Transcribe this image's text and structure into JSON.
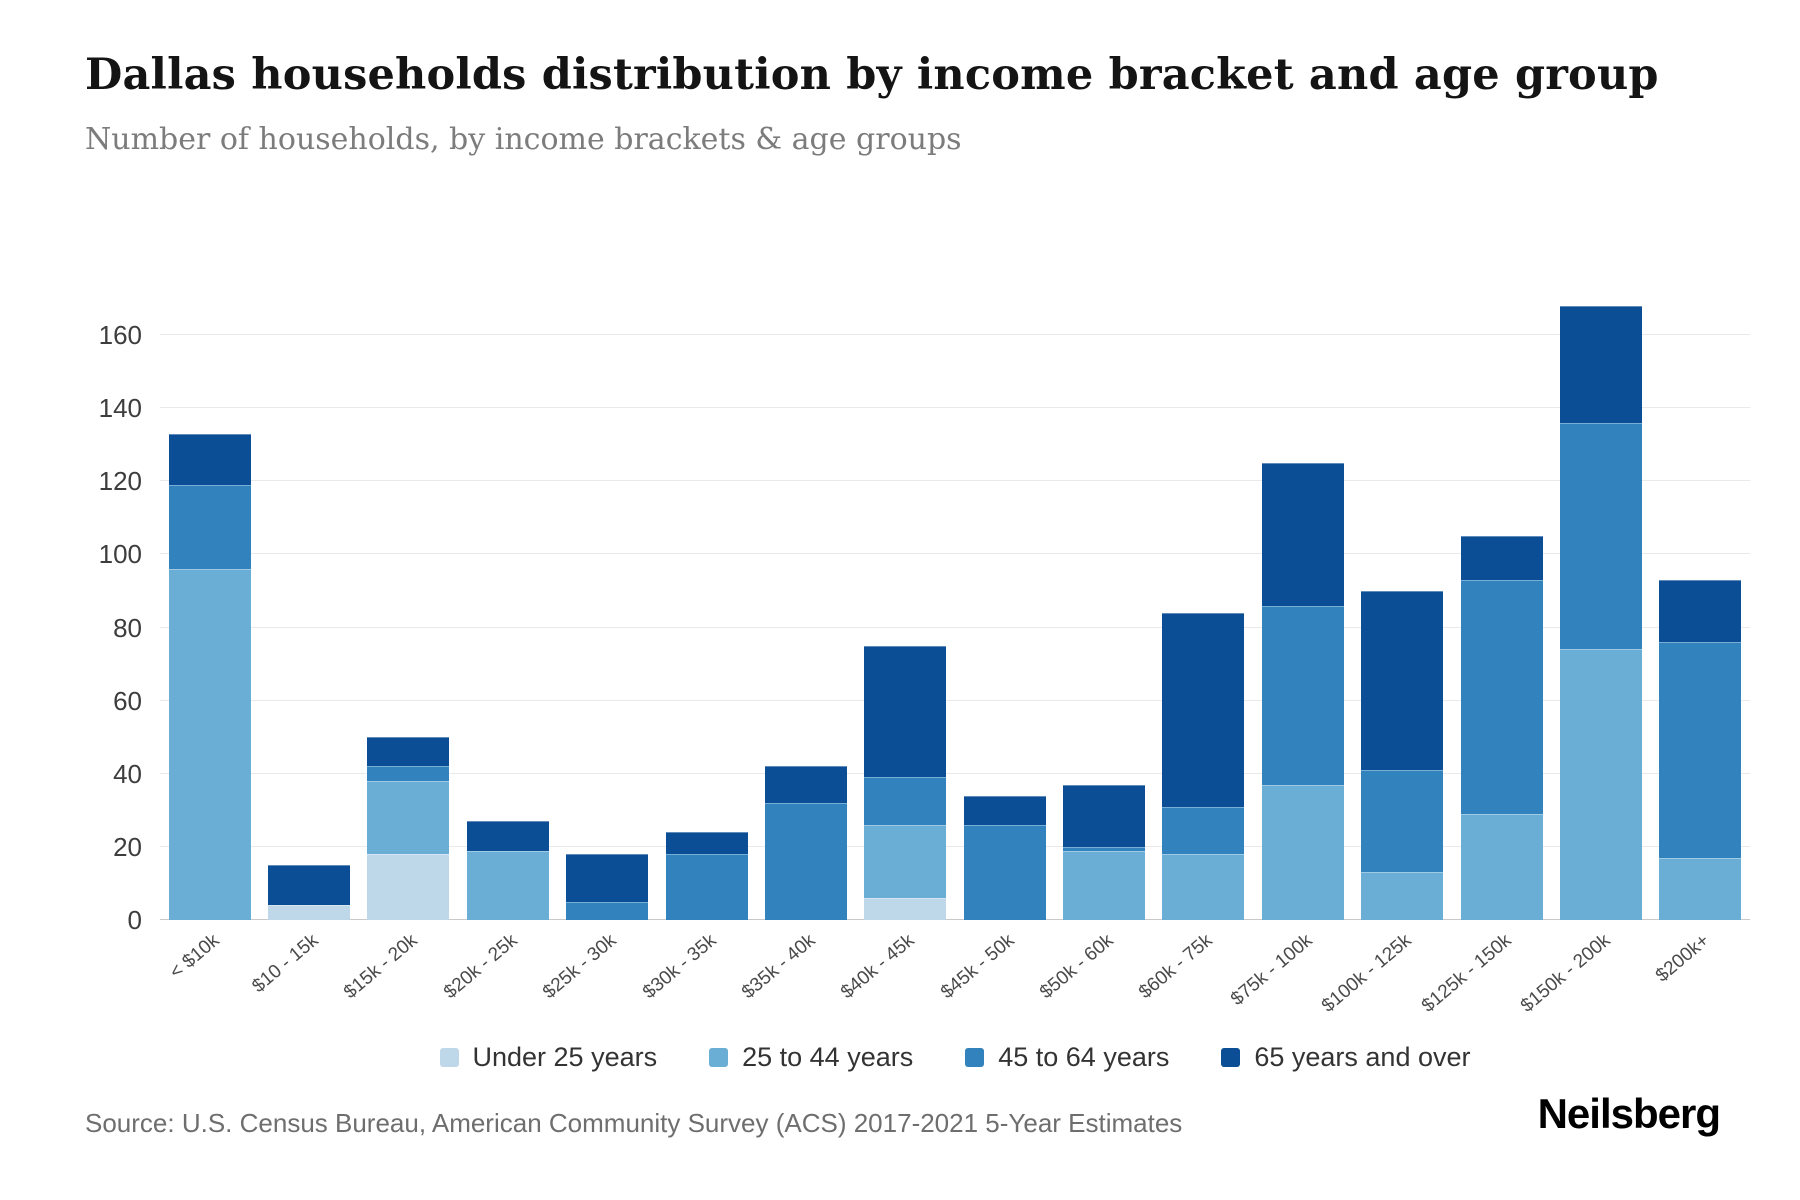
{
  "header": {
    "title": "Dallas households distribution by income bracket and age group",
    "subtitle": "Number of households, by income brackets & age groups"
  },
  "footer": {
    "source": "Source: U.S. Census Bureau, American Community Survey (ACS) 2017-2021 5-Year Estimates",
    "brand": "Neilsberg"
  },
  "chart_data": {
    "type": "bar",
    "stacked": true,
    "title": "Dallas households distribution by income bracket and age group",
    "xlabel": "",
    "ylabel": "Number of households",
    "ylim": [
      0,
      170
    ],
    "yticks": [
      0,
      20,
      40,
      60,
      80,
      100,
      120,
      140,
      160
    ],
    "grid": true,
    "legend_position": "bottom",
    "categories": [
      "< $10k",
      "$10 - 15k",
      "$15k - 20k",
      "$20k - 25k",
      "$25k - 30k",
      "$30k - 35k",
      "$35k - 40k",
      "$40k - 45k",
      "$45k - 50k",
      "$50k - 60k",
      "$60k - 75k",
      "$75k - 100k",
      "$100k - 125k",
      "$125k - 150k",
      "$150k - 200k",
      "$200k+"
    ],
    "series": [
      {
        "name": "Under 25 years",
        "color": "#bed8ea",
        "values": [
          0,
          4,
          18,
          0,
          0,
          0,
          0,
          6,
          0,
          0,
          0,
          0,
          0,
          0,
          0,
          0
        ]
      },
      {
        "name": "25 to 44 years",
        "color": "#6aaed6",
        "values": [
          96,
          0,
          20,
          19,
          0,
          0,
          0,
          20,
          0,
          19,
          18,
          37,
          13,
          29,
          74,
          17
        ]
      },
      {
        "name": "45 to 64 years",
        "color": "#3182bd",
        "values": [
          23,
          0,
          4,
          0,
          5,
          18,
          32,
          13,
          26,
          1,
          13,
          49,
          28,
          64,
          62,
          59
        ]
      },
      {
        "name": "65 years and over",
        "color": "#0b4e96",
        "values": [
          14,
          11,
          8,
          8,
          13,
          6,
          10,
          36,
          8,
          17,
          53,
          39,
          49,
          12,
          32,
          17
        ]
      }
    ],
    "totals": [
      133,
      15,
      50,
      27,
      18,
      24,
      42,
      75,
      34,
      37,
      84,
      125,
      90,
      105,
      168,
      93
    ]
  }
}
